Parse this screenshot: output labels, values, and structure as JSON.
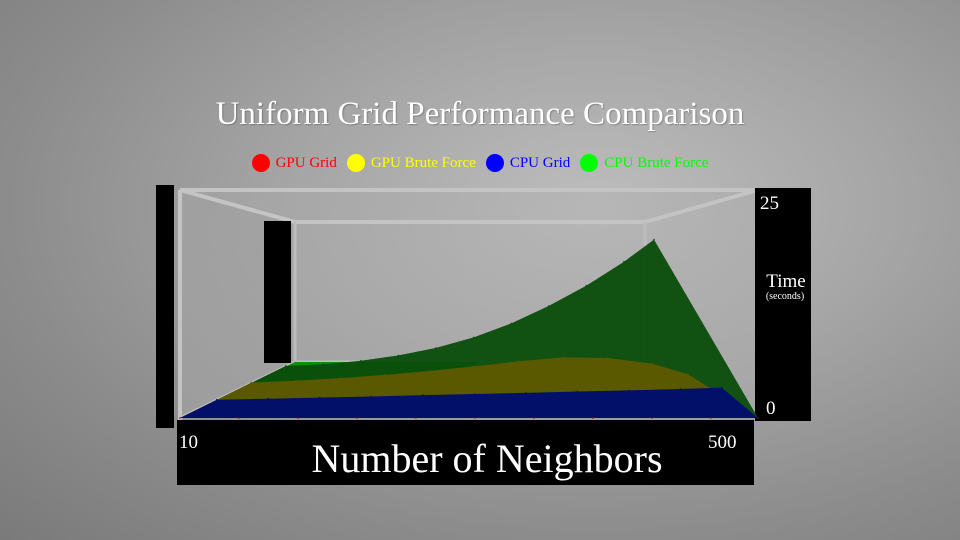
{
  "chart_data": {
    "type": "area",
    "title": "Uniform Grid Performance Comparison",
    "xlabel": "Number of Neighbors",
    "ylabel": "Time",
    "ylabel_unit": "(seconds)",
    "x_tick_labels": [
      "10",
      "500"
    ],
    "y_tick_labels": [
      "0",
      "25"
    ],
    "xlim": [
      10,
      500
    ],
    "ylim": [
      0,
      25
    ],
    "legend_position": "top",
    "x": [
      10,
      60,
      110,
      160,
      210,
      260,
      310,
      360,
      410,
      460,
      500
    ],
    "series": [
      {
        "name": "GPU Grid",
        "color": "#ff0000",
        "area_color": "#b00000",
        "values": [
          0,
          0,
          0,
          0,
          0,
          0,
          0,
          0,
          0,
          0,
          0
        ]
      },
      {
        "name": "GPU Brute Force",
        "color": "#ffff00",
        "area_color": "#5e5a00",
        "values": [
          0.1,
          0.4,
          0.8,
          1.3,
          1.9,
          2.6,
          3.4,
          4.0,
          3.9,
          3.0,
          1.4
        ]
      },
      {
        "name": "CPU Grid",
        "color": "#0000ff",
        "area_color": "#000e6e",
        "values": [
          0.05,
          0.2,
          0.35,
          0.5,
          0.7,
          0.85,
          1.0,
          1.2,
          1.35,
          1.55,
          1.75
        ]
      },
      {
        "name": "CPU Brute Force",
        "color": "#00ff00",
        "area_color": "#0a4d0a",
        "values": [
          0.1,
          0.4,
          1.0,
          1.9,
          3.2,
          5.0,
          7.4,
          10.4,
          13.9,
          18.0,
          21.8
        ]
      }
    ]
  }
}
